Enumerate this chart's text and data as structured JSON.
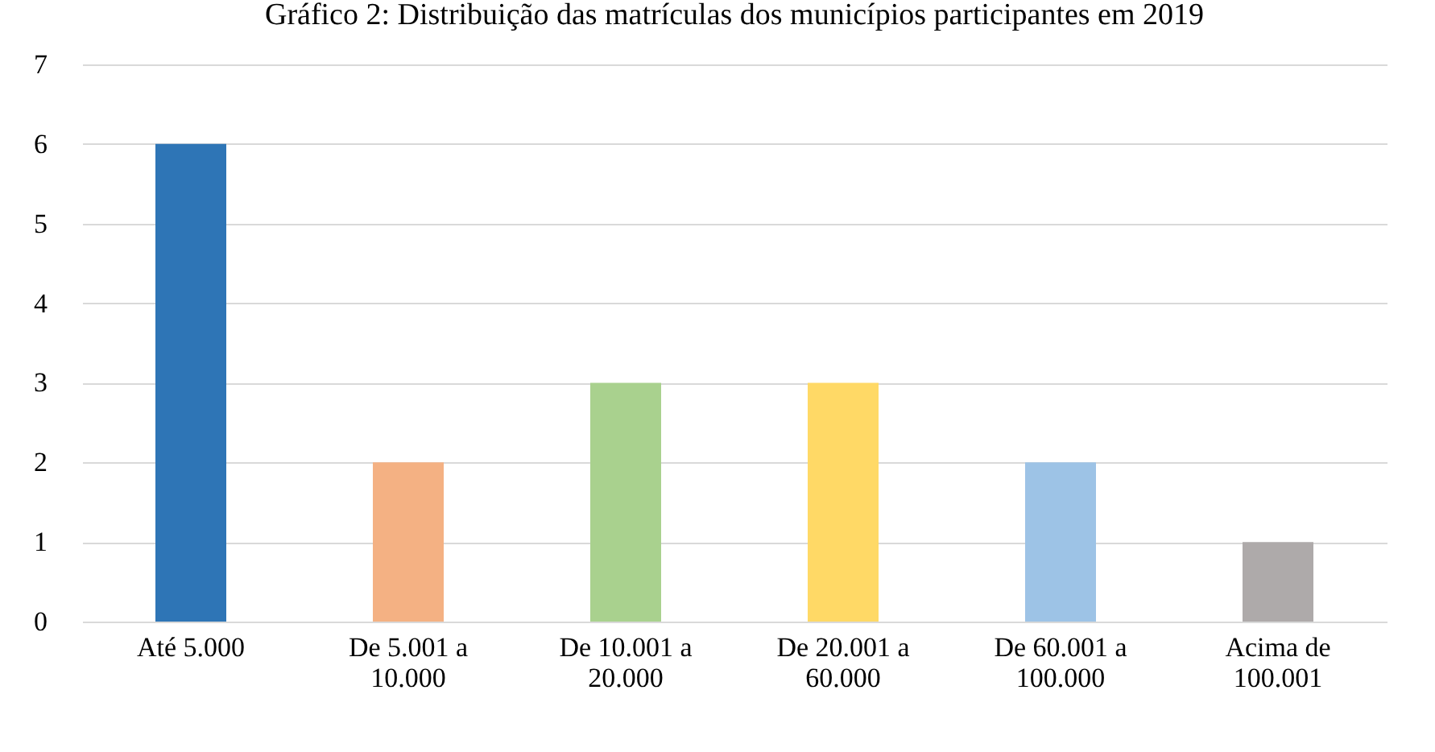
{
  "chart_data": {
    "type": "bar",
    "title": "Gráfico 2: Distribuição das matrículas dos municípios participantes em 2019",
    "categories": [
      "Até 5.000",
      "De 5.001 a 10.000",
      "De 10.001 a 20.000",
      "De 20.001 a 60.000",
      "De 60.001 a 100.000",
      "Acima de 100.001"
    ],
    "values": [
      6,
      2,
      3,
      3,
      2,
      1
    ],
    "colors": [
      "#2e75b6",
      "#f4b183",
      "#a9d18e",
      "#ffd966",
      "#9dc3e6",
      "#aeaaaa"
    ],
    "ylim": [
      0,
      7
    ],
    "yticks": [
      0,
      1,
      2,
      3,
      4,
      5,
      6,
      7
    ],
    "grid": "y",
    "legend": false
  }
}
